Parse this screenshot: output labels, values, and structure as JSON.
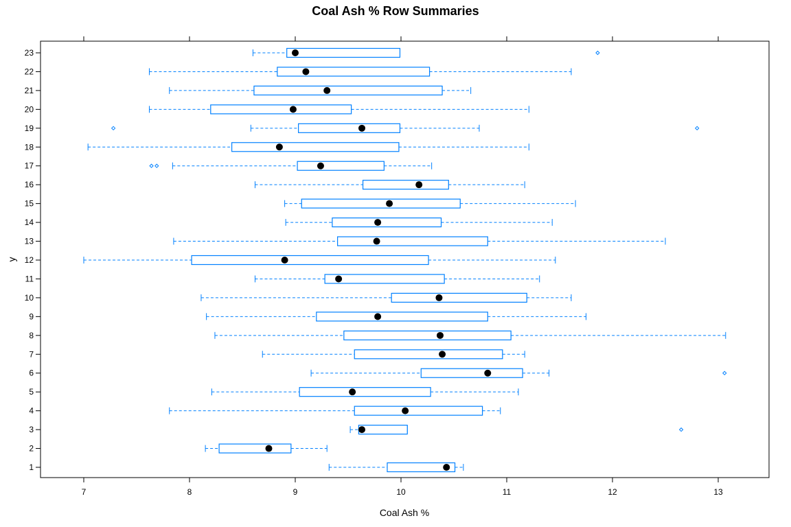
{
  "chart_data": {
    "type": "boxplot",
    "title": "Coal Ash % Row Summaries",
    "xlabel": "Coal Ash %",
    "ylabel": "y",
    "xlim": [
      6.6,
      13.5
    ],
    "x_ticks": [
      7,
      8,
      9,
      10,
      11,
      12,
      13
    ],
    "categories": [
      "1",
      "2",
      "3",
      "4",
      "5",
      "6",
      "7",
      "8",
      "9",
      "10",
      "11",
      "12",
      "13",
      "14",
      "15",
      "16",
      "17",
      "18",
      "19",
      "20",
      "21",
      "22",
      "23"
    ],
    "colors": {
      "box": "#0080ff",
      "median": "#000000"
    },
    "rows": [
      {
        "y": "1",
        "lw": 9.32,
        "q1": 9.87,
        "med": 10.43,
        "q3": 10.51,
        "uw": 10.59,
        "outliers": []
      },
      {
        "y": "2",
        "lw": 8.15,
        "q1": 8.28,
        "med": 8.75,
        "q3": 8.96,
        "uw": 9.3,
        "outliers": []
      },
      {
        "y": "3",
        "lw": 9.52,
        "q1": 9.6,
        "med": 9.63,
        "q3": 10.06,
        "uw": 10.06,
        "outliers": [
          12.65
        ]
      },
      {
        "y": "4",
        "lw": 7.81,
        "q1": 9.56,
        "med": 10.04,
        "q3": 10.77,
        "uw": 10.94,
        "outliers": []
      },
      {
        "y": "5",
        "lw": 8.21,
        "q1": 9.04,
        "med": 9.54,
        "q3": 10.28,
        "uw": 11.11,
        "outliers": []
      },
      {
        "y": "6",
        "lw": 9.15,
        "q1": 10.19,
        "med": 10.82,
        "q3": 11.15,
        "uw": 11.4,
        "outliers": [
          13.06
        ]
      },
      {
        "y": "7",
        "lw": 8.69,
        "q1": 9.56,
        "med": 10.39,
        "q3": 10.96,
        "uw": 11.17,
        "outliers": []
      },
      {
        "y": "8",
        "lw": 8.24,
        "q1": 9.46,
        "med": 10.37,
        "q3": 11.04,
        "uw": 13.07,
        "outliers": []
      },
      {
        "y": "9",
        "lw": 8.16,
        "q1": 9.2,
        "med": 9.78,
        "q3": 10.82,
        "uw": 11.75,
        "outliers": []
      },
      {
        "y": "10",
        "lw": 8.11,
        "q1": 9.91,
        "med": 10.36,
        "q3": 11.19,
        "uw": 11.61,
        "outliers": []
      },
      {
        "y": "11",
        "lw": 8.62,
        "q1": 9.28,
        "med": 9.41,
        "q3": 10.41,
        "uw": 11.31,
        "outliers": []
      },
      {
        "y": "12",
        "lw": 7.0,
        "q1": 8.02,
        "med": 8.9,
        "q3": 10.26,
        "uw": 11.46,
        "outliers": []
      },
      {
        "y": "13",
        "lw": 7.85,
        "q1": 9.4,
        "med": 9.77,
        "q3": 10.82,
        "uw": 12.5,
        "outliers": []
      },
      {
        "y": "14",
        "lw": 8.91,
        "q1": 9.35,
        "med": 9.78,
        "q3": 10.38,
        "uw": 11.43,
        "outliers": []
      },
      {
        "y": "15",
        "lw": 8.9,
        "q1": 9.06,
        "med": 9.89,
        "q3": 10.56,
        "uw": 11.65,
        "outliers": []
      },
      {
        "y": "16",
        "lw": 8.62,
        "q1": 9.64,
        "med": 10.17,
        "q3": 10.45,
        "uw": 11.17,
        "outliers": []
      },
      {
        "y": "17",
        "lw": 7.84,
        "q1": 9.02,
        "med": 9.24,
        "q3": 9.84,
        "uw": 10.29,
        "outliers": [
          7.64,
          7.69
        ]
      },
      {
        "y": "18",
        "lw": 7.04,
        "q1": 8.4,
        "med": 8.85,
        "q3": 9.98,
        "uw": 11.21,
        "outliers": []
      },
      {
        "y": "19",
        "lw": 8.58,
        "q1": 9.03,
        "med": 9.63,
        "q3": 9.99,
        "uw": 10.74,
        "outliers": [
          7.28,
          12.8
        ]
      },
      {
        "y": "20",
        "lw": 7.62,
        "q1": 8.2,
        "med": 8.98,
        "q3": 9.53,
        "uw": 11.21,
        "outliers": []
      },
      {
        "y": "21",
        "lw": 7.81,
        "q1": 8.61,
        "med": 9.3,
        "q3": 10.39,
        "uw": 10.66,
        "outliers": []
      },
      {
        "y": "22",
        "lw": 7.62,
        "q1": 8.83,
        "med": 9.1,
        "q3": 10.27,
        "uw": 11.61,
        "outliers": []
      },
      {
        "y": "23",
        "lw": 8.6,
        "q1": 8.92,
        "med": 9.0,
        "q3": 9.99,
        "uw": 9.99,
        "outliers": [
          11.86
        ]
      }
    ]
  }
}
